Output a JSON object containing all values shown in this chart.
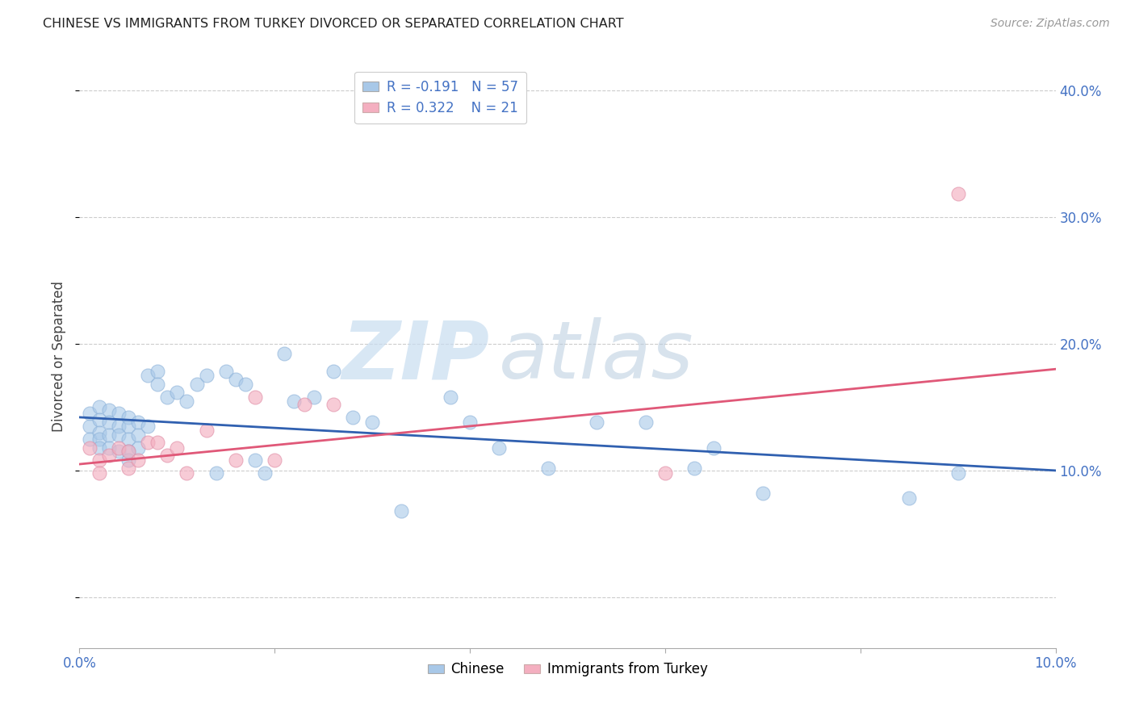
{
  "title": "CHINESE VS IMMIGRANTS FROM TURKEY DIVORCED OR SEPARATED CORRELATION CHART",
  "source": "Source: ZipAtlas.com",
  "ylabel": "Divorced or Separated",
  "xlim": [
    0.0,
    0.1
  ],
  "ylim": [
    -0.04,
    0.42
  ],
  "yticks": [
    0.0,
    0.1,
    0.2,
    0.3,
    0.4
  ],
  "ytick_labels": [
    "",
    "10.0%",
    "20.0%",
    "30.0%",
    "40.0%"
  ],
  "xticks": [
    0.0,
    0.02,
    0.04,
    0.06,
    0.08,
    0.1
  ],
  "xtick_labels": [
    "0.0%",
    "",
    "",
    "",
    "",
    "10.0%"
  ],
  "watermark_zip": "ZIP",
  "watermark_atlas": "atlas",
  "blue_color": "#a8c8e8",
  "pink_color": "#f4afc0",
  "blue_line_color": "#3060b0",
  "pink_line_color": "#e05878",
  "axis_label_color": "#4472c4",
  "grid_color": "#cccccc",
  "background_color": "#ffffff",
  "legend_r1": "R = -0.191",
  "legend_n1": "N = 57",
  "legend_r2": "R = 0.322",
  "legend_n2": "N = 21",
  "chinese_x": [
    0.001,
    0.001,
    0.001,
    0.002,
    0.002,
    0.002,
    0.002,
    0.002,
    0.003,
    0.003,
    0.003,
    0.003,
    0.004,
    0.004,
    0.004,
    0.004,
    0.005,
    0.005,
    0.005,
    0.005,
    0.005,
    0.006,
    0.006,
    0.006,
    0.007,
    0.007,
    0.008,
    0.008,
    0.009,
    0.01,
    0.011,
    0.012,
    0.013,
    0.014,
    0.015,
    0.016,
    0.017,
    0.018,
    0.019,
    0.021,
    0.022,
    0.024,
    0.026,
    0.028,
    0.03,
    0.033,
    0.038,
    0.04,
    0.043,
    0.048,
    0.053,
    0.058,
    0.063,
    0.065,
    0.07,
    0.085,
    0.09
  ],
  "chinese_y": [
    0.145,
    0.135,
    0.125,
    0.15,
    0.14,
    0.13,
    0.125,
    0.118,
    0.148,
    0.138,
    0.128,
    0.118,
    0.145,
    0.135,
    0.128,
    0.115,
    0.142,
    0.135,
    0.125,
    0.115,
    0.108,
    0.138,
    0.128,
    0.118,
    0.175,
    0.135,
    0.178,
    0.168,
    0.158,
    0.162,
    0.155,
    0.168,
    0.175,
    0.098,
    0.178,
    0.172,
    0.168,
    0.108,
    0.098,
    0.192,
    0.155,
    0.158,
    0.178,
    0.142,
    0.138,
    0.068,
    0.158,
    0.138,
    0.118,
    0.102,
    0.138,
    0.138,
    0.102,
    0.118,
    0.082,
    0.078,
    0.098
  ],
  "turkey_x": [
    0.001,
    0.002,
    0.002,
    0.003,
    0.004,
    0.005,
    0.005,
    0.006,
    0.007,
    0.008,
    0.009,
    0.01,
    0.011,
    0.013,
    0.016,
    0.018,
    0.02,
    0.023,
    0.026,
    0.06,
    0.09
  ],
  "turkey_y": [
    0.118,
    0.108,
    0.098,
    0.112,
    0.118,
    0.102,
    0.115,
    0.108,
    0.122,
    0.122,
    0.112,
    0.118,
    0.098,
    0.132,
    0.108,
    0.158,
    0.108,
    0.152,
    0.152,
    0.098,
    0.318
  ],
  "chinese_trend_x": [
    0.0,
    0.1
  ],
  "chinese_trend_y": [
    0.142,
    0.1
  ],
  "turkey_trend_x": [
    0.0,
    0.1
  ],
  "turkey_trend_y": [
    0.105,
    0.18
  ]
}
